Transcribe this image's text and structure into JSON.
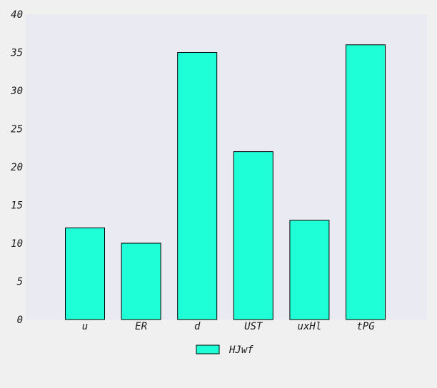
{
  "chart_data": {
    "type": "bar",
    "categories": [
      "u",
      "ER",
      "d",
      "UST",
      "uxHl",
      "tPG"
    ],
    "series": [
      {
        "name": "HJwf",
        "values": [
          12,
          10,
          35,
          22,
          13,
          36
        ]
      }
    ],
    "ylim": [
      0,
      40
    ],
    "yticks": [
      0,
      5,
      10,
      15,
      20,
      25,
      30,
      35,
      40
    ],
    "grid": false,
    "legend": "bottom-center",
    "colors": {
      "bar_fill": "#1effd7",
      "bar_stroke": "#000000",
      "plot_bg": "#eaeaf2",
      "page_bg": "#f0f0f0"
    }
  }
}
